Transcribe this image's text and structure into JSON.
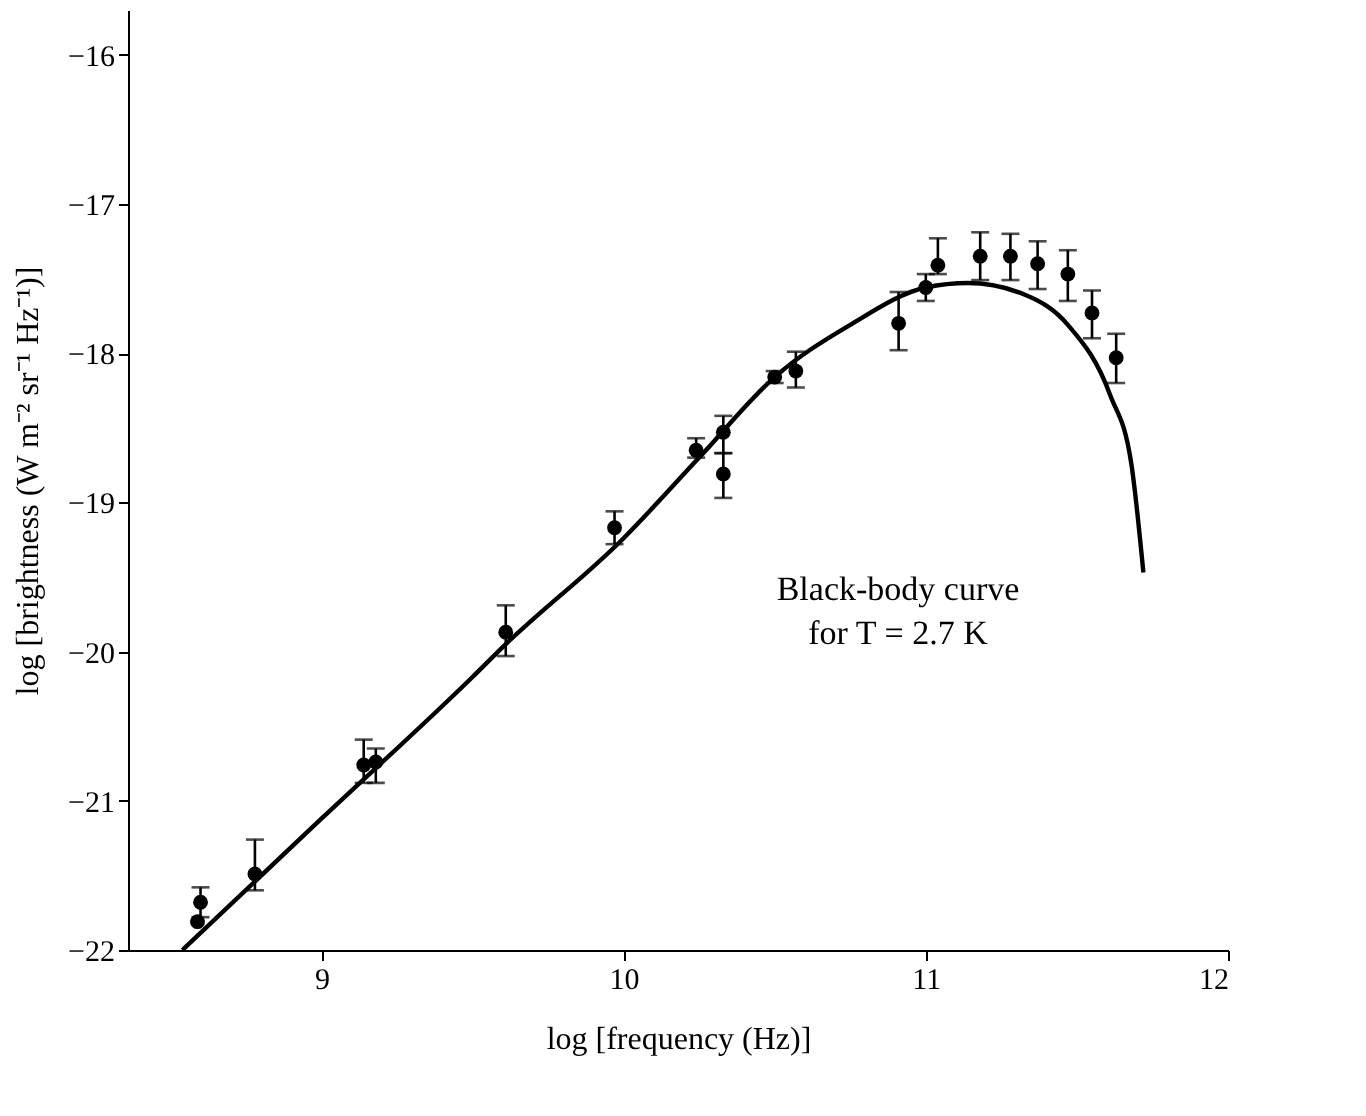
{
  "chart_data": {
    "type": "scatter",
    "xlabel": "log [frequency (Hz)]",
    "ylabel": "log [brightness (W m⁻² sr⁻¹ Hz⁻¹)]",
    "xlim": [
      8.36,
      12.0
    ],
    "ylim": [
      -22,
      -15.7
    ],
    "xticks": [
      9,
      10,
      11,
      12
    ],
    "yticks": [
      -22,
      -21,
      -20,
      -19,
      -18,
      -17,
      -16
    ],
    "marker": "circle",
    "annotations": [
      "Black-body curve\nfor T = 2.7 K"
    ],
    "series": [
      {
        "color": "#000000",
        "x": [
          8.6,
          8.59,
          8.78,
          9.14,
          9.18,
          9.61,
          9.97,
          10.24,
          10.33,
          10.33,
          10.5,
          10.57,
          10.91,
          11.0,
          11.04,
          11.18,
          11.28,
          11.37,
          11.47,
          11.55,
          11.63
        ],
        "values": [
          -21.68,
          -21.81,
          -21.49,
          -20.76,
          -20.74,
          -19.87,
          -19.17,
          -18.65,
          -18.53,
          -18.81,
          -18.16,
          -18.12,
          -17.8,
          -17.56,
          -17.41,
          -17.35,
          -17.35,
          -17.4,
          -17.47,
          -17.73,
          -18.03
        ],
        "errors": [
          [
            -21.78,
            -21.58
          ],
          null,
          [
            -21.6,
            -21.26
          ],
          [
            -20.88,
            -20.59
          ],
          [
            -20.88,
            -20.65
          ],
          [
            -20.03,
            -19.69
          ],
          [
            -19.28,
            -19.06
          ],
          [
            -18.7,
            -18.57
          ],
          [
            -18.67,
            -18.42
          ],
          [
            -18.97,
            -18.67
          ],
          [
            -18.2,
            -18.12
          ],
          [
            -18.23,
            -17.99
          ],
          [
            -17.98,
            -17.59
          ],
          [
            -17.65,
            -17.47
          ],
          [
            -17.47,
            -17.23
          ],
          [
            -17.51,
            -17.19
          ],
          [
            -17.51,
            -17.2
          ],
          [
            -17.57,
            -17.25
          ],
          [
            -17.65,
            -17.31
          ],
          [
            -17.9,
            -17.58
          ],
          [
            -18.2,
            -17.87
          ]
        ]
      },
      {
        "type": "line",
        "color": "#000000",
        "line_style": "solid",
        "marker": "none",
        "x": [
          8.54,
          9.0,
          9.5,
          9.6,
          10.0,
          10.25,
          10.5,
          10.75,
          11.0,
          11.14,
          11.33,
          11.47,
          11.61,
          11.68,
          11.72
        ],
        "values": [
          -22,
          -21.12,
          -20.17,
          -19.97,
          -19.24,
          -18.7,
          -18.16,
          -17.81,
          -17.56,
          -17.53,
          -17.61,
          -17.81,
          -18.28,
          -18.74,
          -19.47
        ]
      }
    ]
  }
}
